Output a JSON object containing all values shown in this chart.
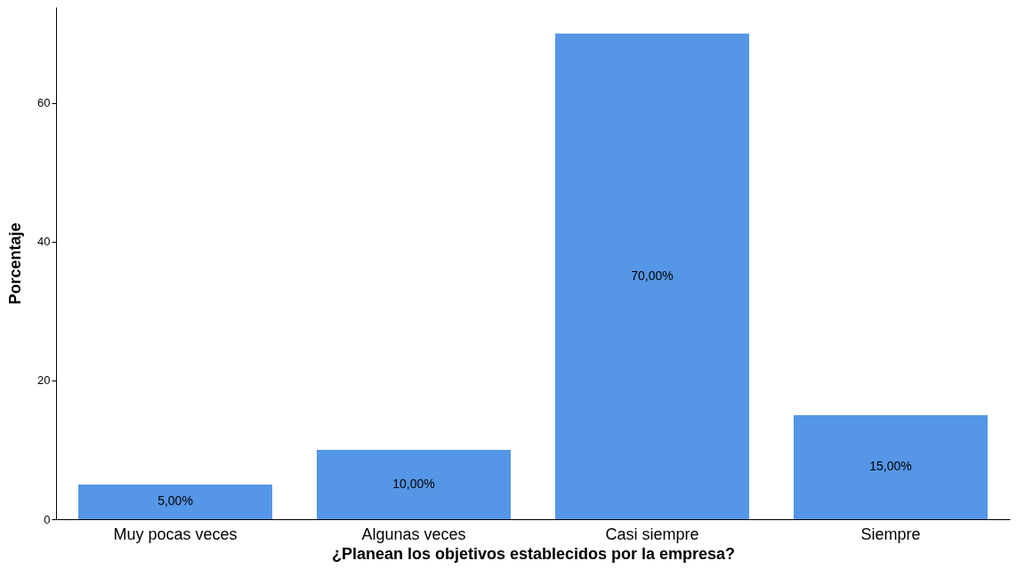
{
  "chart_data": {
    "type": "bar",
    "xlabel": "¿Planean los objetivos establecidos por la empresa?",
    "ylabel": "Porcentaje",
    "categories": [
      "Muy pocas veces",
      "Algunas veces",
      "Casi siempre",
      "Siempre"
    ],
    "values": [
      5,
      10,
      70,
      15
    ],
    "color": "#5596e6",
    "value_labels": [
      "5,00%",
      "10,00%",
      "70,00%",
      "15,00%"
    ],
    "ylim": [
      0,
      73.8
    ],
    "yticks": [
      0,
      20,
      40,
      60
    ],
    "grid": false
  }
}
